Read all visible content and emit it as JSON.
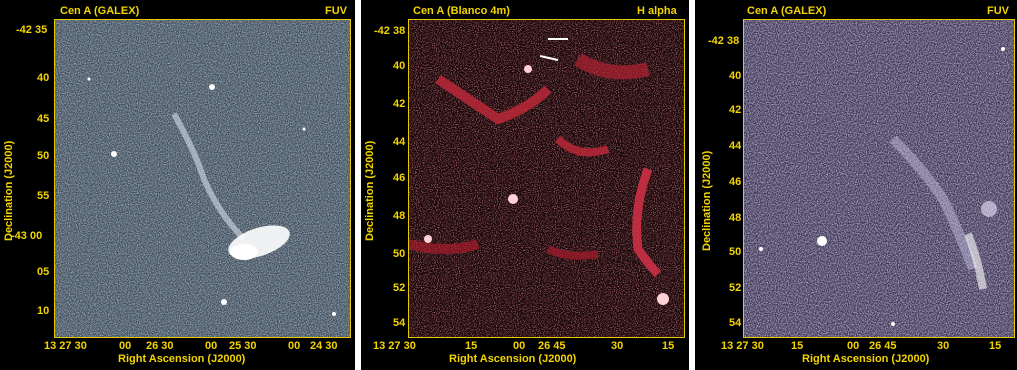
{
  "panels": [
    {
      "title": "Cen A (GALEX)",
      "band": "FUV",
      "xlabel": "Right Ascension (J2000)",
      "ylabel": "Declination (J2000)",
      "xticks": [
        "13 27 30",
        "00",
        "26 30",
        "00",
        "25 30",
        "00",
        "24 30"
      ],
      "yticks": [
        "-42 35",
        "40",
        "45",
        "50",
        "55",
        "-43 00",
        "05",
        "10"
      ],
      "tint": "#a9c4dc"
    },
    {
      "title": "Cen A (Blanco 4m)",
      "band": "H alpha",
      "xlabel": "Right Ascension (J2000)",
      "ylabel": "Declination (J2000)",
      "xticks": [
        "13 27 30",
        "15",
        "00",
        "26 45",
        "30",
        "15"
      ],
      "yticks": [
        "-42 38",
        "40",
        "42",
        "44",
        "46",
        "48",
        "50",
        "52",
        "54"
      ],
      "tint": "#ff4a5a"
    },
    {
      "title": "Cen A (GALEX)",
      "band": "FUV",
      "xlabel": "Right Ascension (J2000)",
      "ylabel": "Declination (J2000)",
      "xticks": [
        "13 27 30",
        "15",
        "00",
        "26 45",
        "30",
        "15"
      ],
      "yticks": [
        "-42 38",
        "40",
        "42",
        "44",
        "46",
        "48",
        "50",
        "52",
        "54"
      ],
      "tint": "#b4a6e0"
    }
  ]
}
